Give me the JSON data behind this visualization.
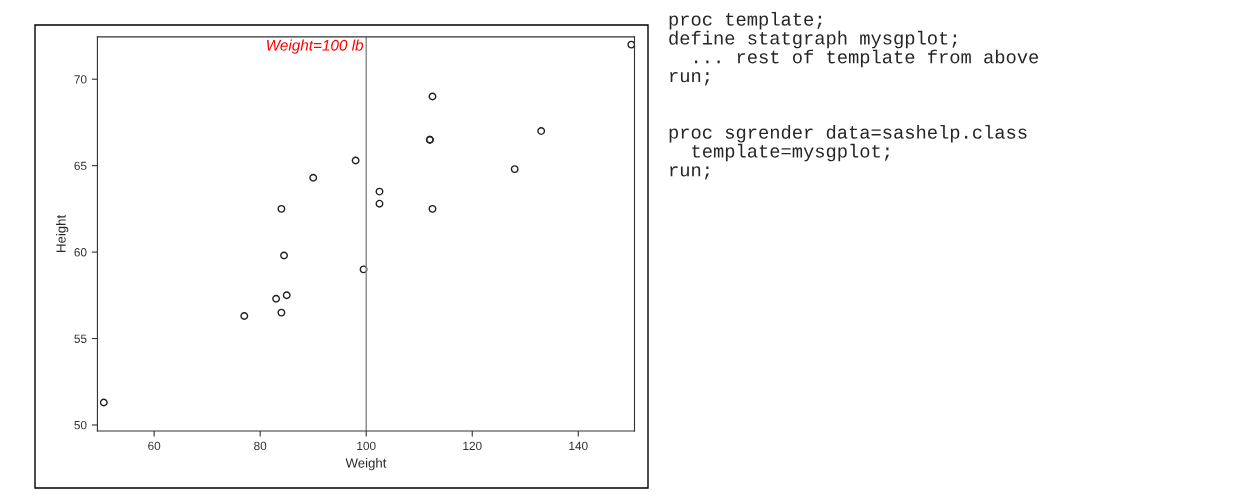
{
  "chart_data": {
    "type": "scatter",
    "xlabel": "Weight",
    "ylabel": "Height",
    "x": [
      112.5,
      84.0,
      98.0,
      102.5,
      102.5,
      83.0,
      84.5,
      112.5,
      84.0,
      99.5,
      50.5,
      90.0,
      77.0,
      112.0,
      150.0,
      128.0,
      133.0,
      85.0,
      112.0
    ],
    "values": [
      69.0,
      56.5,
      65.3,
      62.8,
      63.5,
      57.3,
      59.8,
      62.5,
      62.5,
      59.0,
      51.3,
      64.3,
      56.3,
      66.5,
      72.0,
      64.8,
      67.0,
      57.5,
      66.5
    ],
    "color": "#202020",
    "marker": "circle",
    "xlim": [
      49.3,
      150.6
    ],
    "ylim": [
      49.65,
      72.45
    ],
    "xticks": [
      60,
      80,
      100,
      120,
      140
    ],
    "yticks": [
      50,
      55,
      60,
      65,
      70
    ],
    "ref_lines": [
      {
        "axis": "x",
        "value": 100,
        "label": "Weight=100 lb",
        "color": "#888888"
      }
    ],
    "grid": false,
    "annotations": [
      "proc template;\ndefine statgraph mysgplot;\n  ... rest of template from above\nrun;\n\n\nproc sgrender data=sashelp.class\n  template=mysgplot;\nrun;"
    ]
  }
}
